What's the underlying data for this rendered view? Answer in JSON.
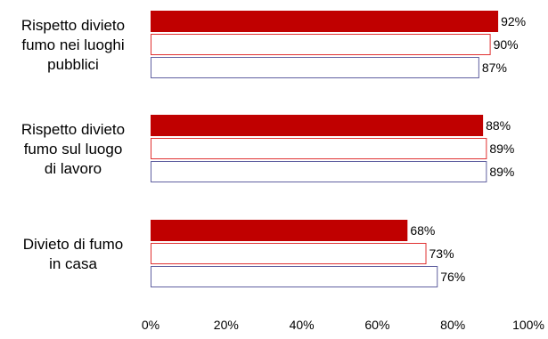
{
  "chart_data": {
    "type": "bar",
    "orientation": "horizontal",
    "categories": [
      "Rispetto divieto fumo nei luoghi pubblici",
      "Rispetto divieto fumo sul luogo di lavoro",
      "Divieto di fumo in casa"
    ],
    "category_lines": [
      [
        "Rispetto divieto",
        "fumo nei luoghi",
        "pubblici"
      ],
      [
        "Rispetto divieto",
        "fumo sul luogo",
        "di lavoro"
      ],
      [
        "Divieto di fumo",
        "in casa"
      ]
    ],
    "series": [
      {
        "values": [
          92,
          88,
          68
        ],
        "fill": "#c00000",
        "stroke": "#c00000"
      },
      {
        "values": [
          90,
          89,
          73
        ],
        "fill": "#ffffff",
        "stroke": "#e03030"
      },
      {
        "values": [
          87,
          89,
          76
        ],
        "fill": "#ffffff",
        "stroke": "#6060a0"
      }
    ],
    "data_labels": [
      [
        "92%",
        "88%",
        "68%"
      ],
      [
        "90%",
        "89%",
        "73%"
      ],
      [
        "87%",
        "89%",
        "76%"
      ]
    ],
    "xlim": [
      0,
      100
    ],
    "x_ticks": [
      0,
      20,
      40,
      60,
      80,
      100
    ],
    "x_tick_labels": [
      "0%",
      "20%",
      "40%",
      "60%",
      "80%",
      "100%"
    ],
    "grid": false,
    "legend": "none",
    "title": "",
    "xlabel": "",
    "ylabel": ""
  }
}
